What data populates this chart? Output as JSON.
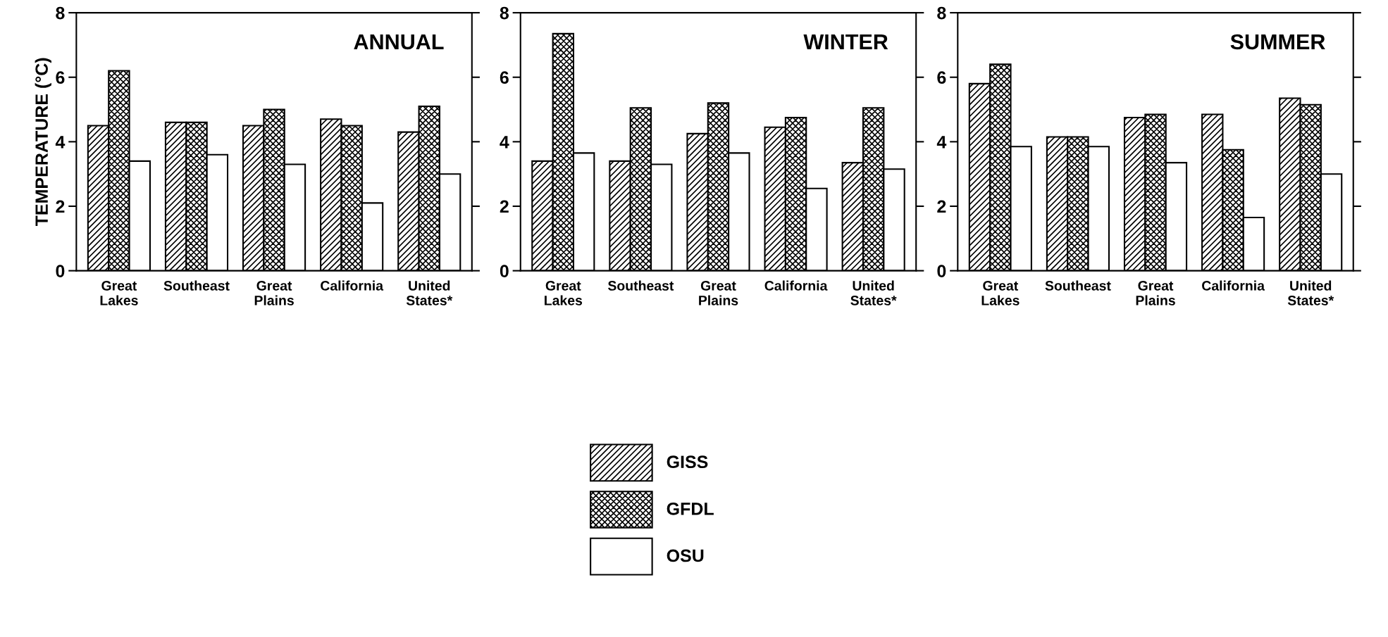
{
  "chart_data": [
    {
      "type": "bar",
      "title": "ANNUAL",
      "ylabel": "TEMPERATURE (°C)",
      "categories": [
        "Great\nLakes",
        "Southeast",
        "Great\nPlains",
        "California",
        "United\nStates*"
      ],
      "ylim": [
        0,
        8
      ],
      "yticks": [
        0,
        2,
        4,
        6,
        8
      ],
      "grid": false,
      "legend": "bottom",
      "series": [
        {
          "name": "GISS",
          "color": "#000000",
          "values": [
            4.5,
            4.6,
            4.5,
            4.7,
            4.3
          ]
        },
        {
          "name": "GFDL",
          "color": "#000000",
          "values": [
            6.2,
            4.6,
            5.0,
            4.5,
            5.1
          ]
        },
        {
          "name": "OSU",
          "color": "#ffffff",
          "values": [
            3.4,
            3.6,
            3.3,
            2.1,
            3.0
          ]
        }
      ]
    },
    {
      "type": "bar",
      "title": "WINTER",
      "categories": [
        "Great\nLakes",
        "Southeast",
        "Great\nPlains",
        "California",
        "United\nStates*"
      ],
      "ylim": [
        0,
        8
      ],
      "yticks": [
        0,
        2,
        4,
        6,
        8
      ],
      "grid": false,
      "series": [
        {
          "color": "#000000",
          "values": [
            3.4,
            3.4,
            4.25,
            4.45,
            3.35
          ]
        },
        {
          "color": "#000000",
          "values": [
            7.35,
            5.05,
            5.2,
            4.75,
            5.05
          ]
        },
        {
          "color": "#ffffff",
          "values": [
            3.65,
            3.3,
            3.65,
            2.55,
            3.15
          ]
        }
      ]
    },
    {
      "type": "bar",
      "title": "SUMMER",
      "categories": [
        "Great\nLakes",
        "Southeast",
        "Great\nPlains",
        "California",
        "United\nStates*"
      ],
      "ylim": [
        0,
        8
      ],
      "yticks": [
        0,
        2,
        4,
        6,
        8
      ],
      "grid": false,
      "series": [
        {
          "color": "#000000",
          "values": [
            5.8,
            4.15,
            4.75,
            4.85,
            5.35
          ]
        },
        {
          "color": "#000000",
          "values": [
            6.4,
            4.15,
            4.85,
            3.75,
            5.15
          ]
        },
        {
          "color": "#ffffff",
          "values": [
            3.85,
            3.85,
            3.35,
            1.65,
            3.0
          ]
        }
      ]
    }
  ]
}
